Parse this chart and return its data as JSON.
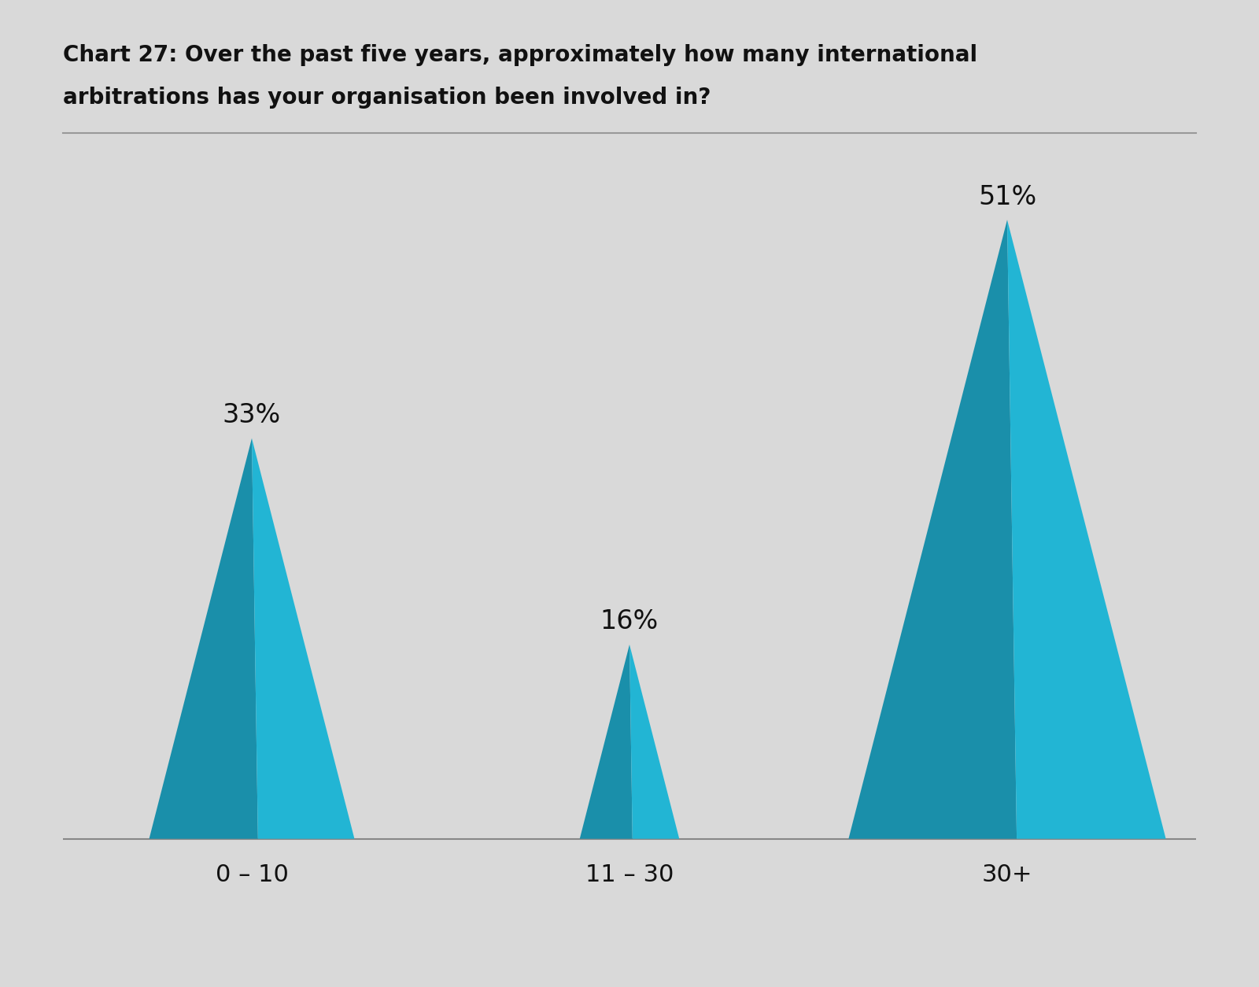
{
  "title_line1": "Chart 27: Over the past five years, approximately how many international",
  "title_line2": "arbitrations has your organisation been involved in?",
  "background_color": "#d9d9d9",
  "categories": [
    "0 – 10",
    "11 – 30",
    "30+"
  ],
  "values": [
    33,
    16,
    51
  ],
  "label_texts": [
    "33%",
    "16%",
    "51%"
  ],
  "triangle_color_light": "#22b5d4",
  "triangle_color_dark": "#1a8faa",
  "title_fontsize": 20,
  "label_fontsize": 24,
  "xlabel_fontsize": 22,
  "baseline_color": "#888888"
}
